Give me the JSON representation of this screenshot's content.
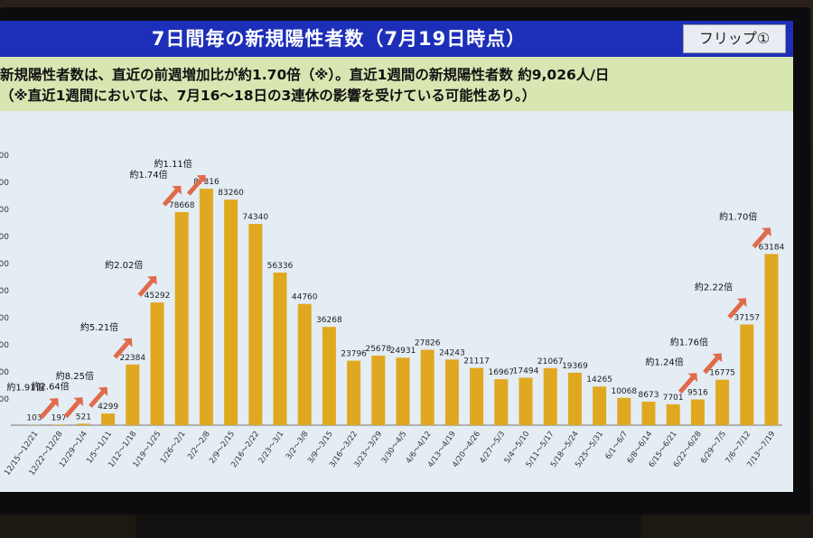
{
  "title": "7日間毎の新規陽性者数（7月19日時点）",
  "flip_label": "フリップ①",
  "subtitle_line1": "新規陽性者数は、直近の前週増加比が約1.70倍（※）。直近1週間の新規陽性者数 約9,026人/日",
  "subtitle_line2": "（※直近1週間においては、7月16〜18日の3連休の影響を受けている可能性あり。）",
  "colors": {
    "title_band": "#1d2fb8",
    "subtitle_band": "#d8e6b2",
    "plot_background": "#e4ecf4",
    "bar": "#e0a820",
    "arrow": "#e06a4a"
  },
  "chart_data": {
    "type": "bar",
    "title": "",
    "xlabel": "",
    "ylabel": "",
    "ylim": [
      0,
      100000
    ],
    "grid": false,
    "categories": [
      "12/15〜12/21",
      "12/22〜12/28",
      "12/29〜1/4",
      "1/5〜1/11",
      "1/12〜1/18",
      "1/19〜1/25",
      "1/26〜2/1",
      "2/2〜2/8",
      "2/9〜2/15",
      "2/16〜2/22",
      "2/23〜3/1",
      "3/2〜3/8",
      "3/9〜3/15",
      "3/16〜3/22",
      "3/23〜3/29",
      "3/30〜4/5",
      "4/6〜4/12",
      "4/13〜4/19",
      "4/20〜4/26",
      "4/27〜5/3",
      "5/4〜5/10",
      "5/11〜5/17",
      "5/18〜5/24",
      "5/25〜5/31",
      "6/1〜6/7",
      "6/8〜6/14",
      "6/15〜6/21",
      "6/22〜6/28",
      "6/29〜7/5",
      "7/6〜7/12",
      "7/13〜7/19"
    ],
    "values": [
      103,
      197,
      521,
      4299,
      22384,
      45292,
      78668,
      87316,
      83260,
      74340,
      56336,
      44760,
      36268,
      23796,
      25678,
      24931,
      27826,
      24243,
      21117,
      16967,
      17494,
      21067,
      19369,
      14265,
      10068,
      8673,
      7701,
      9516,
      16775,
      37157,
      63184
    ],
    "annotations": [
      {
        "category": "12/15〜12/21",
        "text": "約1.91倍"
      },
      {
        "category": "12/22〜12/28",
        "text": "約2.64倍"
      },
      {
        "category": "12/29〜1/4",
        "text": "約8.25倍"
      },
      {
        "category": "1/5〜1/11",
        "text": "約5.21倍"
      },
      {
        "category": "1/12〜1/18",
        "text": "約2.02倍"
      },
      {
        "category": "1/19〜1/25",
        "text": "約1.74倍"
      },
      {
        "category": "1/26〜2/1",
        "text": "約1.11倍"
      },
      {
        "category": "6/15〜6/21",
        "text": "約1.24倍"
      },
      {
        "category": "6/22〜6/28",
        "text": "約1.76倍"
      },
      {
        "category": "6/29〜7/5",
        "text": "約2.22倍"
      },
      {
        "category": "7/6〜7/12",
        "text": "約1.70倍"
      }
    ],
    "y_tick_labels": [
      "000",
      "000",
      "000",
      "000",
      "000",
      "000",
      "000",
      "000",
      "000",
      "000"
    ]
  }
}
